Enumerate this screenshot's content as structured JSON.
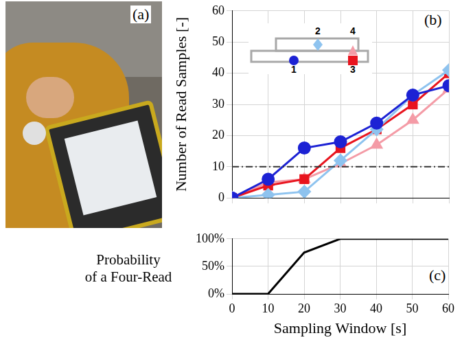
{
  "photo": {
    "panel": "(a)"
  },
  "chart_data": [
    {
      "panel": "(b)",
      "type": "line",
      "y_label": "Number of Read Samples [-]",
      "x": [
        0,
        10,
        20,
        30,
        40,
        50,
        60
      ],
      "series": [
        {
          "name": "1",
          "color": "#1c22d4",
          "marker": "circle",
          "values": [
            0,
            6,
            16,
            18,
            24,
            33,
            36
          ]
        },
        {
          "name": "2",
          "color": "#8ec3ef",
          "marker": "diamond",
          "values": [
            0,
            1,
            2,
            12,
            22,
            33,
            41
          ]
        },
        {
          "name": "3",
          "color": "#e8141e",
          "marker": "square",
          "values": [
            0,
            4,
            6,
            16,
            22,
            30,
            40
          ]
        },
        {
          "name": "4",
          "color": "#f49ba6",
          "marker": "triangle",
          "values": [
            0,
            5,
            6,
            11,
            17,
            25,
            35
          ]
        }
      ],
      "threshold": 10,
      "legend": "top left",
      "xlim": [
        0,
        60
      ],
      "xticks": [
        0,
        10,
        20,
        30,
        40,
        50,
        60
      ],
      "ylim": [
        0,
        60
      ],
      "yticks": [
        0,
        10,
        20,
        30,
        40,
        50,
        60
      ],
      "grid": true,
      "tick_labels": "y"
    },
    {
      "panel": "(c)",
      "type": "line",
      "y_label": "Probability of a Four-Read",
      "x_label": "Sampling Window [s]",
      "x": [
        0,
        10,
        20,
        30,
        40,
        50,
        60
      ],
      "values": [
        0,
        0,
        75,
        100,
        100,
        100,
        100
      ],
      "color": "#000000",
      "xlim": [
        0,
        60
      ],
      "xticks": [
        0,
        10,
        20,
        30,
        40,
        50,
        60
      ],
      "ylim": [
        0,
        100
      ],
      "yticks": [
        {
          "value": 0,
          "label": "0%"
        },
        {
          "value": 50,
          "label": "50%"
        },
        {
          "value": 100,
          "label": "100%"
        }
      ],
      "grid": true
    }
  ]
}
